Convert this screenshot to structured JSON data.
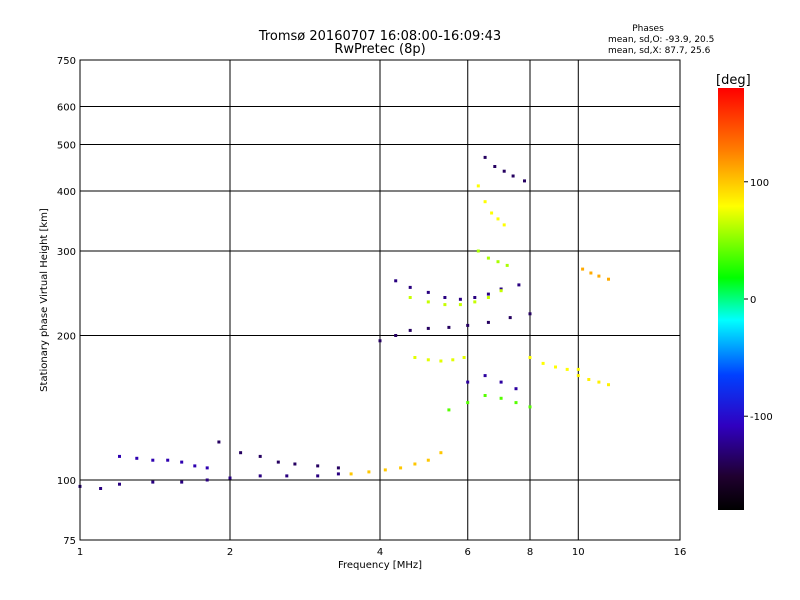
{
  "chart_data": {
    "type": "scatter",
    "title": "Tromsø 20160707 16:08:00-16:09:43",
    "subtitle": "RwPretec (8p)",
    "xlabel": "Frequency [MHz]",
    "ylabel": "Stationary phase Virtual Height [km]",
    "x_scale": "log",
    "y_scale": "log",
    "xlim": [
      1,
      16
    ],
    "ylim": [
      75,
      750
    ],
    "x_ticks": [
      1,
      2,
      4,
      6,
      8,
      10,
      16
    ],
    "y_ticks": [
      75,
      100,
      200,
      300,
      400,
      500,
      600,
      750
    ],
    "grid": true,
    "stats": {
      "heading": "Phases",
      "line_o": "mean, sd,O: -93.9, 20.5",
      "line_x": "mean, sd,X:  87.7, 25.6"
    },
    "colorbar": {
      "label": "[deg]",
      "range": [
        -180,
        180
      ],
      "ticks": [
        100,
        0,
        -100
      ],
      "colors": [
        "#ff0000",
        "#ff8000",
        "#ffff00",
        "#00ff00",
        "#00ffff",
        "#0040ff",
        "#3000c0",
        "#200030",
        "#000000"
      ]
    },
    "series": [
      {
        "x": [
          1.0,
          1.1,
          1.2,
          1.4,
          1.6,
          1.8,
          2.0,
          2.3,
          2.6,
          3.0,
          3.3
        ],
        "y": [
          97,
          96,
          98,
          99,
          99,
          100,
          101,
          102,
          102,
          102,
          103
        ],
        "phase": -110
      },
      {
        "x": [
          1.2,
          1.3,
          1.4,
          1.5,
          1.6,
          1.7,
          1.8
        ],
        "y": [
          112,
          111,
          110,
          110,
          109,
          107,
          106
        ],
        "phase": -95
      },
      {
        "x": [
          1.9,
          2.1,
          2.3,
          2.5,
          2.7,
          3.0,
          3.3
        ],
        "y": [
          120,
          114,
          112,
          109,
          108,
          107,
          106
        ],
        "phase": -120
      },
      {
        "x": [
          3.5,
          3.8,
          4.1,
          4.4,
          4.7,
          5.0,
          5.3
        ],
        "y": [
          103,
          104,
          105,
          106,
          108,
          110,
          114
        ],
        "phase": 110
      },
      {
        "x": [
          4.0,
          4.3,
          4.6,
          5.0,
          5.5,
          6.0,
          6.6,
          7.3,
          8.0
        ],
        "y": [
          195,
          200,
          205,
          207,
          208,
          210,
          213,
          218,
          222
        ],
        "phase": -120
      },
      {
        "x": [
          4.3,
          4.6,
          5.0,
          5.4,
          5.8,
          6.2,
          6.6,
          7.0,
          7.6
        ],
        "y": [
          260,
          252,
          246,
          240,
          238,
          240,
          244,
          250,
          255
        ],
        "phase": -110
      },
      {
        "x": [
          4.6,
          5.0,
          5.4,
          5.8,
          6.2,
          6.6,
          7.0
        ],
        "y": [
          240,
          235,
          232,
          232,
          235,
          240,
          248
        ],
        "phase": 80
      },
      {
        "x": [
          4.7,
          5.0,
          5.3,
          5.6,
          5.9
        ],
        "y": [
          180,
          178,
          177,
          178,
          180
        ],
        "phase": 85
      },
      {
        "x": [
          6.3,
          6.5,
          6.7,
          6.9,
          7.1
        ],
        "y": [
          410,
          380,
          360,
          350,
          340
        ],
        "phase": 90
      },
      {
        "x": [
          6.5,
          6.8,
          7.1,
          7.4,
          7.8
        ],
        "y": [
          470,
          450,
          440,
          430,
          420
        ],
        "phase": -120
      },
      {
        "x": [
          6.3,
          6.6,
          6.9,
          7.2
        ],
        "y": [
          300,
          290,
          285,
          280
        ],
        "phase": 75
      },
      {
        "x": [
          8.0,
          8.5,
          9.0,
          9.5,
          10.0
        ],
        "y": [
          180,
          175,
          172,
          170,
          170
        ],
        "phase": 90
      },
      {
        "x": [
          10.2,
          10.6,
          11.0,
          11.5
        ],
        "y": [
          275,
          270,
          266,
          262
        ],
        "phase": 120
      },
      {
        "x": [
          10.0,
          10.5,
          11.0,
          11.5
        ],
        "y": [
          165,
          162,
          160,
          158
        ],
        "phase": 95
      },
      {
        "x": [
          5.5,
          6.0,
          6.5,
          7.0,
          7.5,
          8.0
        ],
        "y": [
          140,
          145,
          150,
          148,
          145,
          142
        ],
        "phase": 60
      },
      {
        "x": [
          6.0,
          6.5,
          7.0,
          7.5
        ],
        "y": [
          160,
          165,
          160,
          155
        ],
        "phase": -100
      }
    ]
  }
}
